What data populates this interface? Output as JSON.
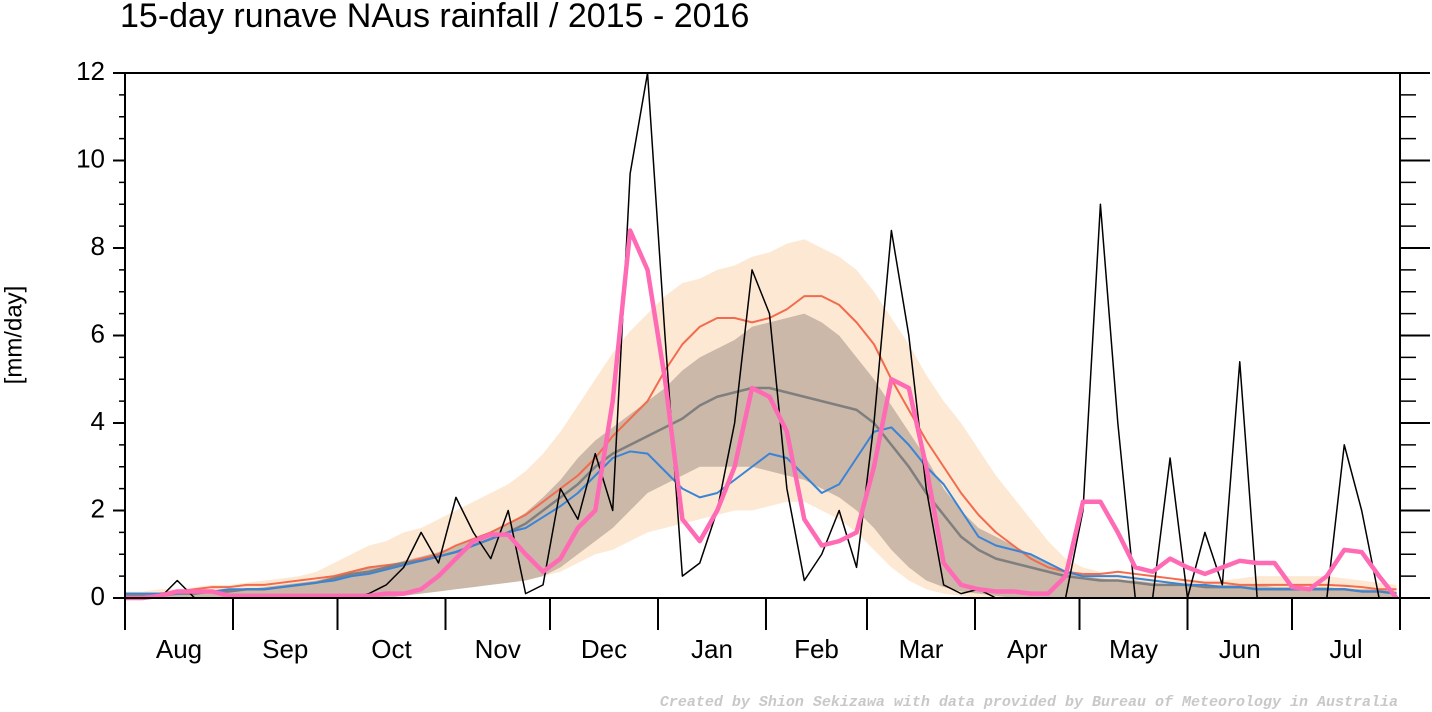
{
  "chart_data": {
    "type": "line",
    "title": "15-day runave NAus rainfall  /  2015 - 2016",
    "ylabel": "[mm/day]",
    "credit": "Created by Shion Sekizawa with data provided by Bureau of Meteorology in Australia",
    "months": [
      "Aug",
      "Sep",
      "Oct",
      "Nov",
      "Dec",
      "Jan",
      "Feb",
      "Mar",
      "Apr",
      "May",
      "Jun",
      "Jul"
    ],
    "xlim": [
      0,
      366
    ],
    "xticks": [
      0,
      31,
      61,
      92,
      122,
      153,
      184,
      213,
      244,
      274,
      305,
      335,
      366
    ],
    "ylim": [
      0,
      12
    ],
    "yticks": [
      0,
      2,
      4,
      6,
      8,
      10,
      12
    ],
    "x": [
      0,
      5,
      10,
      15,
      20,
      25,
      30,
      35,
      40,
      45,
      50,
      55,
      60,
      65,
      70,
      75,
      80,
      85,
      90,
      95,
      100,
      105,
      110,
      115,
      120,
      125,
      130,
      135,
      140,
      145,
      150,
      155,
      160,
      165,
      170,
      175,
      180,
      185,
      190,
      195,
      200,
      205,
      210,
      215,
      220,
      225,
      230,
      235,
      240,
      245,
      250,
      255,
      260,
      265,
      270,
      275,
      280,
      285,
      290,
      295,
      300,
      305,
      310,
      315,
      320,
      325,
      330,
      335,
      340,
      345,
      350,
      355,
      360,
      365
    ],
    "bands": [
      {
        "color": "#fde9d3",
        "upper": [
          0.15,
          0.15,
          0.2,
          0.2,
          0.25,
          0.3,
          0.3,
          0.35,
          0.4,
          0.45,
          0.5,
          0.6,
          0.8,
          1.0,
          1.2,
          1.3,
          1.5,
          1.6,
          1.8,
          2.0,
          2.2,
          2.4,
          2.6,
          2.9,
          3.3,
          3.8,
          4.4,
          5.0,
          5.6,
          6.1,
          6.5,
          6.9,
          7.2,
          7.3,
          7.5,
          7.6,
          7.8,
          7.9,
          8.1,
          8.2,
          8.0,
          7.8,
          7.5,
          7.0,
          6.4,
          5.8,
          5.1,
          4.5,
          4.0,
          3.4,
          2.8,
          2.3,
          1.8,
          1.3,
          0.9,
          0.7,
          0.6,
          0.55,
          0.5,
          0.45,
          0.4,
          0.4,
          0.4,
          0.4,
          0.45,
          0.5,
          0.5,
          0.5,
          0.5,
          0.5,
          0.45,
          0.4,
          0.35,
          0.3
        ],
        "lower": [
          0,
          0,
          0,
          0,
          0,
          0,
          0,
          0,
          0,
          0,
          0,
          0,
          0,
          0,
          0,
          0.05,
          0.1,
          0.15,
          0.2,
          0.25,
          0.3,
          0.35,
          0.4,
          0.45,
          0.5,
          0.6,
          0.8,
          1.0,
          1.1,
          1.3,
          1.5,
          1.6,
          1.7,
          1.8,
          1.9,
          2.0,
          2.0,
          2.1,
          2.2,
          2.2,
          2.0,
          1.8,
          1.5,
          1.1,
          0.7,
          0.4,
          0.2,
          0.1,
          0.05,
          0,
          0,
          0,
          0,
          0,
          0,
          0,
          0,
          0,
          0,
          0,
          0,
          0,
          0,
          0,
          0,
          0,
          0,
          0,
          0,
          0,
          0,
          0,
          0,
          0
        ]
      },
      {
        "color": "#cbb8a8",
        "upper": [
          0.1,
          0.1,
          0.1,
          0.1,
          0.15,
          0.15,
          0.2,
          0.2,
          0.25,
          0.3,
          0.35,
          0.4,
          0.5,
          0.6,
          0.7,
          0.75,
          0.85,
          0.95,
          1.05,
          1.2,
          1.35,
          1.5,
          1.7,
          1.95,
          2.3,
          2.7,
          3.2,
          3.6,
          3.9,
          4.2,
          4.5,
          4.8,
          5.2,
          5.5,
          5.7,
          5.9,
          6.2,
          6.3,
          6.4,
          6.5,
          6.3,
          6.0,
          5.5,
          5.0,
          4.4,
          3.8,
          3.2,
          2.5,
          2.0,
          1.6,
          1.4,
          1.2,
          1.0,
          0.8,
          0.6,
          0.5,
          0.45,
          0.4,
          0.4,
          0.35,
          0.3,
          0.3,
          0.3,
          0.3,
          0.3,
          0.3,
          0.25,
          0.25,
          0.25,
          0.25,
          0.2,
          0.2,
          0.2,
          0.15
        ],
        "lower": [
          0,
          0,
          0,
          0,
          0,
          0,
          0,
          0,
          0,
          0,
          0,
          0,
          0,
          0,
          0,
          0,
          0.05,
          0.1,
          0.15,
          0.2,
          0.25,
          0.3,
          0.35,
          0.4,
          0.5,
          0.7,
          1.0,
          1.3,
          1.6,
          2.0,
          2.4,
          2.6,
          2.8,
          3.0,
          3.0,
          3.0,
          3.0,
          2.9,
          2.8,
          2.7,
          2.5,
          2.3,
          2.0,
          1.6,
          1.1,
          0.7,
          0.4,
          0.25,
          0.15,
          0.1,
          0.05,
          0,
          0,
          0,
          0,
          0,
          0,
          0,
          0,
          0,
          0,
          0,
          0,
          0,
          0,
          0,
          0,
          0,
          0,
          0,
          0,
          0,
          0,
          0
        ]
      }
    ],
    "series": [
      {
        "color": "#f26b4e",
        "width": 2,
        "values": [
          0.1,
          0.1,
          0.1,
          0.15,
          0.2,
          0.25,
          0.25,
          0.3,
          0.3,
          0.35,
          0.4,
          0.45,
          0.5,
          0.6,
          0.7,
          0.75,
          0.8,
          0.9,
          1.0,
          1.2,
          1.35,
          1.5,
          1.7,
          1.9,
          2.2,
          2.5,
          2.8,
          3.2,
          3.7,
          4.1,
          4.5,
          5.2,
          5.8,
          6.2,
          6.4,
          6.4,
          6.3,
          6.4,
          6.6,
          6.9,
          6.9,
          6.7,
          6.3,
          5.8,
          5.0,
          4.3,
          3.6,
          3.0,
          2.4,
          1.9,
          1.5,
          1.2,
          0.9,
          0.7,
          0.6,
          0.55,
          0.55,
          0.6,
          0.55,
          0.5,
          0.45,
          0.4,
          0.35,
          0.35,
          0.3,
          0.3,
          0.3,
          0.3,
          0.3,
          0.3,
          0.28,
          0.25,
          0.2,
          0.2
        ]
      },
      {
        "color": "#7f7f7f",
        "width": 2.5,
        "values": [
          0.05,
          0.05,
          0.05,
          0.1,
          0.1,
          0.15,
          0.15,
          0.2,
          0.2,
          0.25,
          0.3,
          0.35,
          0.45,
          0.55,
          0.6,
          0.7,
          0.8,
          0.85,
          0.95,
          1.05,
          1.2,
          1.35,
          1.5,
          1.7,
          2.0,
          2.3,
          2.6,
          3.0,
          3.3,
          3.5,
          3.7,
          3.9,
          4.1,
          4.4,
          4.6,
          4.7,
          4.8,
          4.8,
          4.7,
          4.6,
          4.5,
          4.4,
          4.3,
          4.0,
          3.5,
          3.0,
          2.4,
          1.9,
          1.4,
          1.1,
          0.9,
          0.8,
          0.7,
          0.6,
          0.5,
          0.45,
          0.4,
          0.4,
          0.35,
          0.3,
          0.3,
          0.3,
          0.25,
          0.25,
          0.25,
          0.2,
          0.2,
          0.2,
          0.2,
          0.2,
          0.2,
          0.15,
          0.15,
          0.1
        ]
      },
      {
        "color": "#3a84d6",
        "width": 2,
        "values": [
          0.1,
          0.1,
          0.1,
          0.1,
          0.15,
          0.15,
          0.2,
          0.2,
          0.2,
          0.25,
          0.3,
          0.35,
          0.4,
          0.5,
          0.55,
          0.65,
          0.75,
          0.85,
          0.95,
          1.05,
          1.2,
          1.35,
          1.5,
          1.6,
          1.85,
          2.1,
          2.4,
          2.8,
          3.2,
          3.35,
          3.3,
          2.9,
          2.5,
          2.3,
          2.4,
          2.7,
          3.0,
          3.3,
          3.2,
          2.8,
          2.4,
          2.6,
          3.2,
          3.8,
          3.9,
          3.5,
          3.0,
          2.6,
          2.0,
          1.4,
          1.2,
          1.1,
          1.0,
          0.8,
          0.6,
          0.5,
          0.5,
          0.5,
          0.45,
          0.4,
          0.35,
          0.3,
          0.3,
          0.25,
          0.25,
          0.2,
          0.2,
          0.2,
          0.2,
          0.2,
          0.2,
          0.15,
          0.15,
          0.1
        ]
      },
      {
        "color": "#000000",
        "width": 1.5,
        "values": [
          0,
          0,
          0,
          0.4,
          0,
          0,
          0,
          0,
          0,
          0,
          0,
          0,
          0,
          0,
          0.1,
          0.3,
          0.7,
          1.5,
          0.8,
          2.3,
          1.5,
          0.9,
          2.0,
          0.1,
          0.3,
          2.5,
          1.8,
          3.3,
          2.0,
          9.7,
          12,
          6.0,
          0.5,
          0.8,
          2.0,
          4.0,
          7.5,
          6.5,
          2.5,
          0.4,
          1.0,
          2.0,
          0.7,
          4.0,
          8.4,
          6.0,
          2.5,
          0.3,
          0.1,
          0.2,
          0,
          0,
          0,
          0,
          0,
          2.0,
          9.0,
          4.0,
          0,
          0,
          3.2,
          0,
          1.5,
          0.3,
          5.4,
          0,
          0,
          0,
          0,
          0,
          3.5,
          2.0,
          0,
          0
        ]
      },
      {
        "color": "#ff6ab4",
        "width": 4.5,
        "values": [
          0,
          0,
          0.05,
          0.15,
          0.15,
          0.15,
          0.05,
          0.05,
          0.05,
          0.05,
          0.05,
          0.05,
          0.05,
          0.05,
          0.05,
          0.1,
          0.1,
          0.2,
          0.5,
          0.9,
          1.3,
          1.45,
          1.45,
          1.0,
          0.6,
          0.9,
          1.6,
          2.0,
          4.5,
          8.4,
          7.5,
          5.0,
          1.8,
          1.3,
          2.0,
          3.0,
          4.8,
          4.6,
          3.8,
          1.8,
          1.2,
          1.3,
          1.5,
          3.0,
          5.0,
          4.8,
          3.0,
          0.8,
          0.3,
          0.2,
          0.15,
          0.15,
          0.1,
          0.1,
          0.5,
          2.2,
          2.2,
          1.5,
          0.7,
          0.6,
          0.9,
          0.7,
          0.55,
          0.7,
          0.85,
          0.8,
          0.8,
          0.25,
          0.2,
          0.5,
          1.1,
          1.05,
          0.5,
          0
        ]
      }
    ]
  }
}
